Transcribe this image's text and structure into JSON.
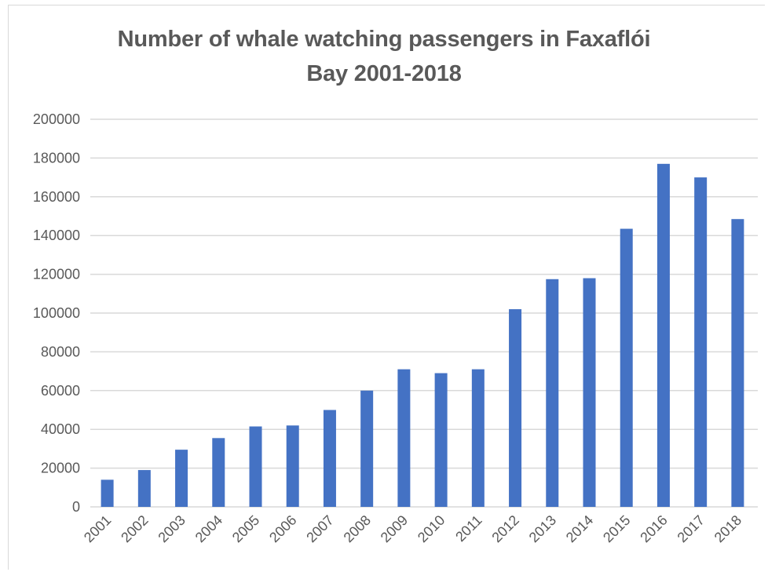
{
  "chart_data": {
    "type": "bar",
    "title": "Number of whale watching passengers in Faxaflói Bay 2001-2018",
    "title_lines": [
      "Number of whale watching passengers in Faxaflói",
      "Bay 2001-2018"
    ],
    "xlabel": "",
    "ylabel": "",
    "categories": [
      "2001",
      "2002",
      "2003",
      "2004",
      "2005",
      "2006",
      "2007",
      "2008",
      "2009",
      "2010",
      "2011",
      "2012",
      "2013",
      "2014",
      "2015",
      "2016",
      "2017",
      "2018"
    ],
    "values": [
      14000,
      19000,
      29500,
      35500,
      41500,
      42000,
      50000,
      60000,
      71000,
      69000,
      71000,
      102000,
      117500,
      118000,
      143500,
      177000,
      170000,
      148500
    ],
    "ylim": [
      0,
      200000
    ],
    "yticks": [
      "0",
      "20000",
      "40000",
      "60000",
      "80000",
      "100000",
      "120000",
      "140000",
      "160000",
      "180000",
      "200000"
    ],
    "grid": true,
    "legend": "none",
    "bar_color": "#4472c4",
    "grid_color": "#d9d9d9"
  }
}
